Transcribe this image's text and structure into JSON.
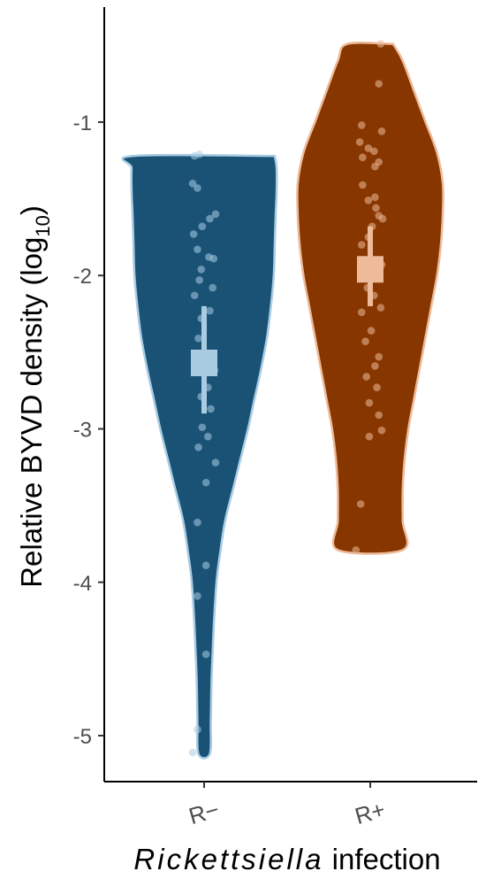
{
  "chart_data": {
    "type": "violin",
    "title": "",
    "xlabel_italic": "Rickettsiella",
    "xlabel_rest": " infection",
    "ylabel_main": "Relative BYVD density (log",
    "ylabel_sub": "10",
    "ylabel_close": ")",
    "ylim": [
      -5.3,
      -0.25
    ],
    "y_ticks": [
      {
        "value": -1,
        "label": "-1"
      },
      {
        "value": -2,
        "label": "-2"
      },
      {
        "value": -3,
        "label": "-3"
      },
      {
        "value": -4,
        "label": "-4"
      },
      {
        "value": -5,
        "label": "-5"
      }
    ],
    "grid": false,
    "legend": "none",
    "categories": [
      {
        "label": "R−",
        "fill": "#1a5276",
        "outline": "#a9cce3",
        "summary_color": "#a9cce3",
        "mean": -2.57,
        "ci": [
          -2.2,
          -2.9
        ],
        "violin_profile": [
          [
            -1.22,
            0.74
          ],
          [
            -1.3,
            0.76
          ],
          [
            -1.45,
            0.76
          ],
          [
            -1.6,
            0.75
          ],
          [
            -1.8,
            0.74
          ],
          [
            -2.0,
            0.73
          ],
          [
            -2.2,
            0.7
          ],
          [
            -2.4,
            0.66
          ],
          [
            -2.6,
            0.6
          ],
          [
            -2.8,
            0.53
          ],
          [
            -3.0,
            0.46
          ],
          [
            -3.2,
            0.38
          ],
          [
            -3.4,
            0.3
          ],
          [
            -3.6,
            0.22
          ],
          [
            -3.8,
            0.17
          ],
          [
            -4.0,
            0.13
          ],
          [
            -4.3,
            0.1
          ],
          [
            -4.6,
            0.08
          ],
          [
            -4.9,
            0.07
          ],
          [
            -5.12,
            0.06
          ]
        ],
        "points": [
          [
            -1.22,
            -0.1
          ],
          [
            -1.21,
            -0.05
          ],
          [
            -1.4,
            -0.12
          ],
          [
            -1.43,
            -0.07
          ],
          [
            -1.6,
            0.12
          ],
          [
            -1.63,
            0.06
          ],
          [
            -1.68,
            -0.02
          ],
          [
            -1.73,
            -0.11
          ],
          [
            -1.83,
            -0.07
          ],
          [
            -1.88,
            0.05
          ],
          [
            -1.89,
            0.1
          ],
          [
            -1.96,
            -0.03
          ],
          [
            -2.03,
            -0.05
          ],
          [
            -2.08,
            0.09
          ],
          [
            -2.13,
            -0.1
          ],
          [
            -2.23,
            0.06
          ],
          [
            -2.28,
            -0.03
          ],
          [
            -2.41,
            -0.06
          ],
          [
            -2.54,
            0.05
          ],
          [
            -2.62,
            0.11
          ],
          [
            -2.73,
            0.04
          ],
          [
            -2.79,
            -0.03
          ],
          [
            -2.87,
            0.07
          ],
          [
            -2.99,
            -0.02
          ],
          [
            -3.05,
            0.04
          ],
          [
            -3.12,
            -0.06
          ],
          [
            -3.22,
            0.12
          ],
          [
            -3.35,
            0.02
          ],
          [
            -3.61,
            -0.07
          ],
          [
            -3.89,
            0.02
          ],
          [
            -4.09,
            -0.07
          ],
          [
            -4.47,
            0.02
          ],
          [
            -4.96,
            -0.07
          ],
          [
            -5.11,
            -0.12
          ]
        ]
      },
      {
        "label": "R+",
        "fill": "#873600",
        "outline": "#edbb99",
        "summary_color": "#edbb99",
        "mean": -1.96,
        "ci": [
          -1.68,
          -2.2
        ],
        "violin_profile": [
          [
            -0.49,
            0.24
          ],
          [
            -0.6,
            0.34
          ],
          [
            -0.8,
            0.46
          ],
          [
            -1.0,
            0.58
          ],
          [
            -1.2,
            0.7
          ],
          [
            -1.4,
            0.76
          ],
          [
            -1.6,
            0.76
          ],
          [
            -1.8,
            0.74
          ],
          [
            -2.0,
            0.7
          ],
          [
            -2.2,
            0.64
          ],
          [
            -2.4,
            0.58
          ],
          [
            -2.6,
            0.52
          ],
          [
            -2.8,
            0.46
          ],
          [
            -3.0,
            0.4
          ],
          [
            -3.2,
            0.36
          ],
          [
            -3.4,
            0.34
          ],
          [
            -3.6,
            0.34
          ],
          [
            -3.79,
            0.34
          ]
        ],
        "points": [
          [
            -0.49,
            0.11
          ],
          [
            -0.75,
            0.09
          ],
          [
            -1.02,
            -0.09
          ],
          [
            -1.06,
            0.12
          ],
          [
            -1.13,
            -0.11
          ],
          [
            -1.17,
            -0.02
          ],
          [
            -1.19,
            0.04
          ],
          [
            -1.23,
            -0.08
          ],
          [
            -1.26,
            0.09
          ],
          [
            -1.29,
            0.05
          ],
          [
            -1.41,
            -0.08
          ],
          [
            -1.49,
            0.05
          ],
          [
            -1.51,
            -0.02
          ],
          [
            -1.56,
            0.06
          ],
          [
            -1.61,
            0.09
          ],
          [
            -1.63,
            0.13
          ],
          [
            -1.68,
            0.02
          ],
          [
            -1.75,
            -0.02
          ],
          [
            -1.8,
            -0.09
          ],
          [
            -1.93,
            0.12
          ],
          [
            -2.01,
            0.05
          ],
          [
            -2.08,
            -0.03
          ],
          [
            -2.13,
            0.04
          ],
          [
            -2.21,
            0.11
          ],
          [
            -2.24,
            -0.09
          ],
          [
            -2.36,
            0.01
          ],
          [
            -2.43,
            -0.05
          ],
          [
            -2.53,
            0.09
          ],
          [
            -2.59,
            0.05
          ],
          [
            -2.66,
            -0.04
          ],
          [
            -2.73,
            0.07
          ],
          [
            -2.83,
            -0.01
          ],
          [
            -2.91,
            0.09
          ],
          [
            -3.01,
            0.12
          ],
          [
            -3.05,
            -0.01
          ],
          [
            -3.49,
            -0.1
          ],
          [
            -3.79,
            -0.15
          ]
        ]
      }
    ]
  }
}
